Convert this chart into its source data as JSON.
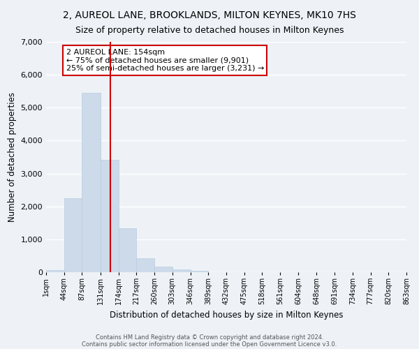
{
  "title1": "2, AUREOL LANE, BROOKLANDS, MILTON KEYNES, MK10 7HS",
  "title2": "Size of property relative to detached houses in Milton Keynes",
  "xlabel": "Distribution of detached houses by size in Milton Keynes",
  "ylabel": "Number of detached properties",
  "bar_color": "#cddaea",
  "bar_edge_color": "#b8cde0",
  "vline_color": "#cc0000",
  "vline_x": 154,
  "annotation_line1": "2 AUREOL LANE: 154sqm",
  "annotation_line2": "← 75% of detached houses are smaller (9,901)",
  "annotation_line3": "25% of semi-detached houses are larger (3,231) →",
  "annotation_box_facecolor": "#ffffff",
  "annotation_box_edge": "#cc0000",
  "footnote1": "Contains HM Land Registry data © Crown copyright and database right 2024.",
  "footnote2": "Contains public sector information licensed under the Open Government Licence v3.0.",
  "bin_edges": [
    1,
    44,
    87,
    131,
    174,
    217,
    260,
    303,
    346,
    389,
    432,
    475,
    518,
    561,
    604,
    648,
    691,
    734,
    777,
    820,
    863
  ],
  "bar_heights": [
    55,
    2250,
    5450,
    3420,
    1330,
    430,
    170,
    75,
    50,
    0,
    0,
    0,
    0,
    0,
    0,
    0,
    0,
    0,
    0,
    0
  ],
  "ylim": [
    0,
    7000
  ],
  "yticks": [
    0,
    1000,
    2000,
    3000,
    4000,
    5000,
    6000,
    7000
  ],
  "background_color": "#eef2f7",
  "grid_color": "#ffffff",
  "title1_fontsize": 10,
  "title2_fontsize": 9,
  "tick_label_fontsize": 7,
  "xlabel_fontsize": 8.5,
  "ylabel_fontsize": 8.5,
  "annotation_fontsize": 8,
  "footnote_fontsize": 6
}
